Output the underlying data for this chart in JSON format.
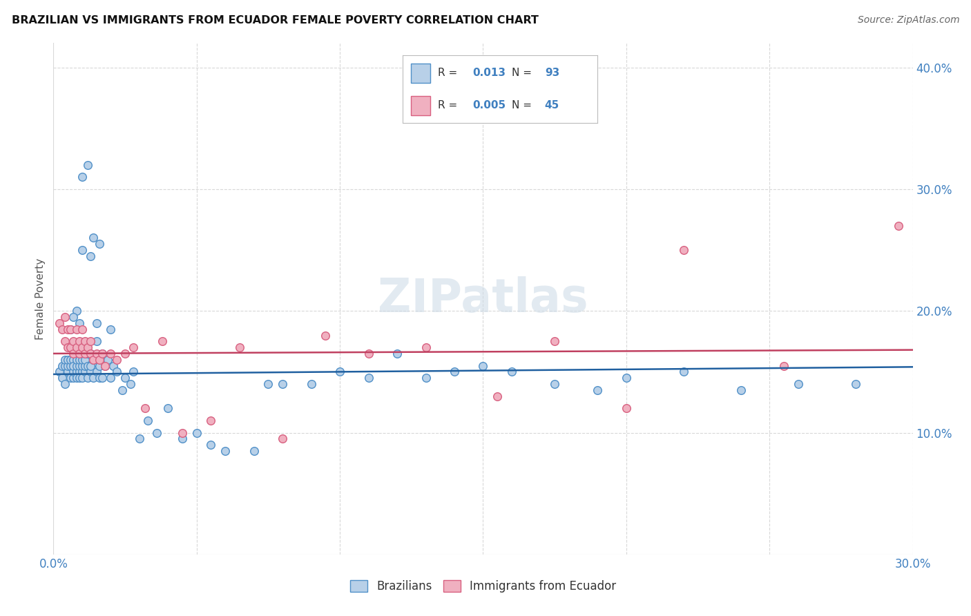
{
  "title": "BRAZILIAN VS IMMIGRANTS FROM ECUADOR FEMALE POVERTY CORRELATION CHART",
  "source": "Source: ZipAtlas.com",
  "ylabel": "Female Poverty",
  "xlim": [
    0.0,
    0.3
  ],
  "ylim": [
    0.0,
    0.42
  ],
  "xticks": [
    0.0,
    0.05,
    0.1,
    0.15,
    0.2,
    0.25,
    0.3
  ],
  "xticklabels": [
    "0.0%",
    "",
    "",
    "",
    "",
    "",
    "30.0%"
  ],
  "yticks": [
    0.0,
    0.1,
    0.2,
    0.3,
    0.4
  ],
  "yticklabels": [
    "",
    "10.0%",
    "20.0%",
    "30.0%",
    "40.0%"
  ],
  "background_color": "#ffffff",
  "grid_color": "#d8d8d8",
  "blue_fill": "#b8d0e8",
  "blue_edge": "#5090c8",
  "pink_fill": "#f0b0c0",
  "pink_edge": "#d86080",
  "blue_line_color": "#2060a0",
  "pink_line_color": "#c04060",
  "legend_R1": "0.013",
  "legend_N1": "93",
  "legend_R2": "0.005",
  "legend_N2": "45",
  "watermark": "ZIPatlas",
  "legend_label1": "Brazilians",
  "legend_label2": "Immigrants from Ecuador",
  "blue_scatter_x": [
    0.002,
    0.003,
    0.003,
    0.004,
    0.004,
    0.004,
    0.005,
    0.005,
    0.005,
    0.006,
    0.006,
    0.006,
    0.007,
    0.007,
    0.007,
    0.007,
    0.008,
    0.008,
    0.008,
    0.008,
    0.009,
    0.009,
    0.009,
    0.009,
    0.01,
    0.01,
    0.01,
    0.01,
    0.011,
    0.011,
    0.011,
    0.012,
    0.012,
    0.012,
    0.013,
    0.013,
    0.013,
    0.014,
    0.014,
    0.015,
    0.015,
    0.015,
    0.016,
    0.016,
    0.017,
    0.017,
    0.018,
    0.019,
    0.02,
    0.021,
    0.022,
    0.024,
    0.025,
    0.027,
    0.028,
    0.03,
    0.033,
    0.036,
    0.04,
    0.045,
    0.05,
    0.055,
    0.06,
    0.07,
    0.075,
    0.08,
    0.09,
    0.1,
    0.11,
    0.12,
    0.13,
    0.14,
    0.15,
    0.16,
    0.175,
    0.19,
    0.2,
    0.22,
    0.24,
    0.26,
    0.015,
    0.02,
    0.008,
    0.006,
    0.009,
    0.011,
    0.007,
    0.013,
    0.016,
    0.01,
    0.014,
    0.28,
    0.012,
    0.01
  ],
  "blue_scatter_y": [
    0.15,
    0.145,
    0.155,
    0.14,
    0.155,
    0.16,
    0.15,
    0.155,
    0.16,
    0.145,
    0.155,
    0.16,
    0.145,
    0.16,
    0.15,
    0.155,
    0.15,
    0.145,
    0.155,
    0.16,
    0.15,
    0.145,
    0.155,
    0.16,
    0.15,
    0.155,
    0.145,
    0.16,
    0.15,
    0.155,
    0.16,
    0.145,
    0.155,
    0.165,
    0.15,
    0.155,
    0.165,
    0.145,
    0.16,
    0.15,
    0.16,
    0.175,
    0.145,
    0.155,
    0.145,
    0.165,
    0.155,
    0.16,
    0.145,
    0.155,
    0.15,
    0.135,
    0.145,
    0.14,
    0.15,
    0.095,
    0.11,
    0.1,
    0.12,
    0.095,
    0.1,
    0.09,
    0.085,
    0.085,
    0.14,
    0.14,
    0.14,
    0.15,
    0.145,
    0.165,
    0.145,
    0.15,
    0.155,
    0.15,
    0.14,
    0.135,
    0.145,
    0.15,
    0.135,
    0.14,
    0.19,
    0.185,
    0.2,
    0.185,
    0.19,
    0.165,
    0.195,
    0.245,
    0.255,
    0.25,
    0.26,
    0.14,
    0.32,
    0.31
  ],
  "pink_scatter_x": [
    0.002,
    0.003,
    0.004,
    0.004,
    0.005,
    0.005,
    0.006,
    0.006,
    0.007,
    0.007,
    0.008,
    0.008,
    0.009,
    0.009,
    0.01,
    0.01,
    0.011,
    0.011,
    0.012,
    0.013,
    0.013,
    0.014,
    0.015,
    0.016,
    0.017,
    0.018,
    0.02,
    0.022,
    0.025,
    0.028,
    0.032,
    0.038,
    0.045,
    0.055,
    0.065,
    0.08,
    0.095,
    0.11,
    0.13,
    0.155,
    0.175,
    0.2,
    0.22,
    0.255,
    0.295
  ],
  "pink_scatter_y": [
    0.19,
    0.185,
    0.195,
    0.175,
    0.185,
    0.17,
    0.185,
    0.17,
    0.175,
    0.165,
    0.185,
    0.17,
    0.175,
    0.165,
    0.185,
    0.17,
    0.175,
    0.165,
    0.17,
    0.175,
    0.165,
    0.16,
    0.165,
    0.16,
    0.165,
    0.155,
    0.165,
    0.16,
    0.165,
    0.17,
    0.12,
    0.175,
    0.1,
    0.11,
    0.17,
    0.095,
    0.18,
    0.165,
    0.17,
    0.13,
    0.175,
    0.12,
    0.25,
    0.155,
    0.27
  ],
  "blue_trend_x": [
    0.0,
    0.3
  ],
  "blue_trend_y": [
    0.148,
    0.154
  ],
  "pink_trend_x": [
    0.0,
    0.3
  ],
  "pink_trend_y": [
    0.165,
    0.168
  ]
}
